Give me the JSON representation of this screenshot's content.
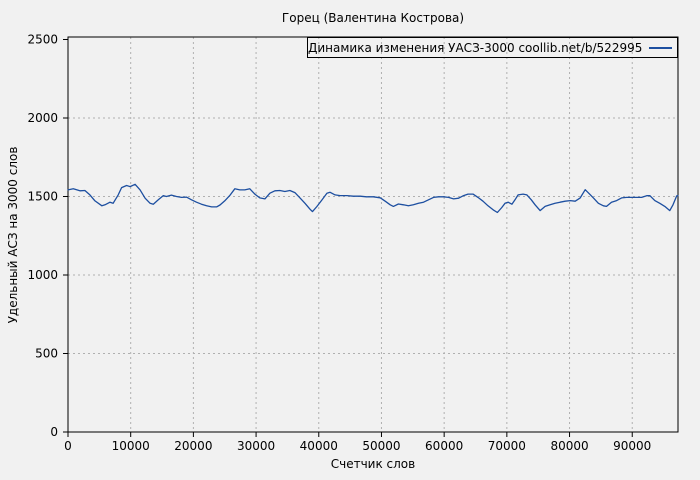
{
  "title": "Горец (Валентина Кострова)",
  "legend": {
    "label": "Динамика изменения УАСЗ-3000  coollib.net/b/522995",
    "line_color": "#1d4fa0",
    "position": "top-right-inside",
    "boxed": true
  },
  "colors": {
    "background": "#f1f1f1",
    "axis": "#000000",
    "grid": "#b0b0b0",
    "series": "#1d4fa0"
  },
  "chart_data": {
    "type": "line",
    "title": "Горец (Валентина Кострова)",
    "xlabel": "Счетчик слов",
    "ylabel": "Удельный АСЗ на 3000 слов",
    "xlim": [
      0,
      97300
    ],
    "ylim": [
      0,
      2500
    ],
    "x_ticks": [
      0,
      10000,
      20000,
      30000,
      40000,
      50000,
      60000,
      70000,
      80000,
      90000
    ],
    "y_ticks": [
      0,
      500,
      1000,
      1500,
      2000,
      2500
    ],
    "grid": true,
    "legend_position": "top",
    "series": [
      {
        "name": "Динамика изменения УАСЗ-3000  coollib.net/b/522995",
        "color": "#1d4fa0",
        "x": [
          0,
          850,
          1900,
          2700,
          3500,
          4300,
          5400,
          5900,
          6700,
          7200,
          8000,
          8550,
          9350,
          9900,
          10700,
          11500,
          12300,
          13100,
          13600,
          14400,
          15200,
          15700,
          16500,
          17300,
          18100,
          18900,
          19700,
          20500,
          21300,
          22100,
          22900,
          23700,
          24250,
          25000,
          25800,
          26600,
          27400,
          28200,
          29000,
          29800,
          30600,
          31400,
          32200,
          33000,
          33800,
          34600,
          35400,
          36200,
          37000,
          37800,
          38600,
          39000,
          39700,
          40500,
          41300,
          41800,
          42600,
          43400,
          44500,
          45500,
          46600,
          47600,
          48700,
          49800,
          50600,
          51400,
          51900,
          52700,
          53500,
          54300,
          55100,
          55900,
          56700,
          57500,
          58300,
          59100,
          59900,
          60700,
          61500,
          62300,
          63100,
          63800,
          64600,
          65400,
          66200,
          67000,
          67800,
          68500,
          69200,
          69700,
          70200,
          70800,
          71300,
          71800,
          72600,
          73200,
          73900,
          74500,
          75300,
          76100,
          76900,
          77700,
          78500,
          79300,
          80100,
          80900,
          81700,
          82500,
          83200,
          83800,
          84600,
          85400,
          85900,
          86700,
          87500,
          88300,
          89100,
          89900,
          90700,
          91500,
          92300,
          92800,
          93600,
          94400,
          95200,
          96000,
          96500,
          97100,
          97300
        ],
        "y": [
          1542,
          1549,
          1536,
          1538,
          1510,
          1472,
          1441,
          1447,
          1464,
          1457,
          1510,
          1557,
          1570,
          1563,
          1578,
          1542,
          1489,
          1457,
          1451,
          1479,
          1506,
          1500,
          1509,
          1500,
          1494,
          1496,
          1479,
          1464,
          1451,
          1441,
          1434,
          1434,
          1446,
          1472,
          1506,
          1549,
          1542,
          1542,
          1549,
          1515,
          1491,
          1485,
          1521,
          1536,
          1538,
          1532,
          1538,
          1525,
          1491,
          1457,
          1419,
          1404,
          1436,
          1478,
          1521,
          1527,
          1510,
          1506,
          1506,
          1502,
          1502,
          1498,
          1498,
          1492,
          1470,
          1447,
          1437,
          1452,
          1447,
          1441,
          1447,
          1457,
          1464,
          1479,
          1494,
          1498,
          1498,
          1494,
          1485,
          1489,
          1506,
          1515,
          1515,
          1494,
          1470,
          1441,
          1415,
          1398,
          1430,
          1457,
          1464,
          1451,
          1479,
          1510,
          1515,
          1510,
          1479,
          1447,
          1410,
          1437,
          1447,
          1457,
          1464,
          1470,
          1474,
          1470,
          1491,
          1543,
          1515,
          1491,
          1457,
          1441,
          1437,
          1464,
          1474,
          1491,
          1494,
          1494,
          1494,
          1494,
          1505,
          1506,
          1474,
          1457,
          1437,
          1410,
          1447,
          1504,
          1506
        ]
      }
    ]
  }
}
